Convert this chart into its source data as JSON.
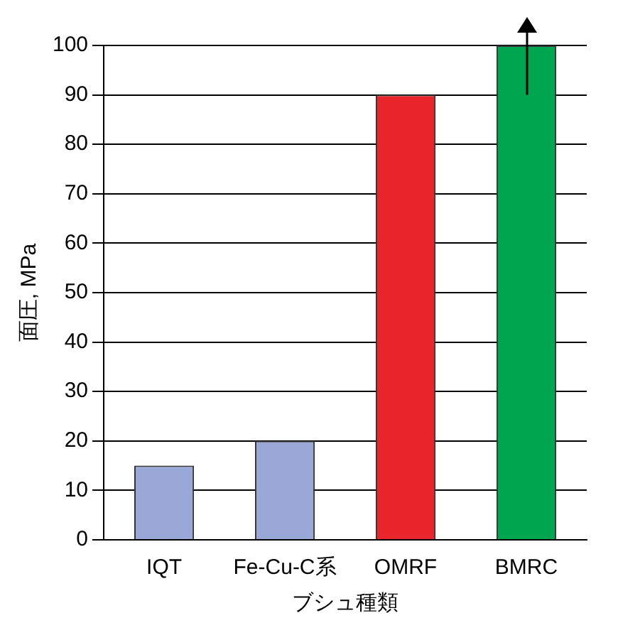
{
  "chart_data": {
    "type": "bar",
    "categories": [
      "IQT",
      "Fe-Cu-C系",
      "OMRF",
      "BMRC"
    ],
    "values": [
      15,
      20,
      90,
      100
    ],
    "colors": [
      "#9aa8d8",
      "#9aa8d8",
      "#e8262b",
      "#00a550"
    ],
    "xlabel": "ブシュ種類",
    "ylabel": "面圧, MPa",
    "ylim": [
      0,
      100
    ],
    "yticks": [
      0,
      10,
      20,
      30,
      40,
      50,
      60,
      70,
      80,
      90,
      100
    ],
    "grid": "y",
    "legend": false
  }
}
